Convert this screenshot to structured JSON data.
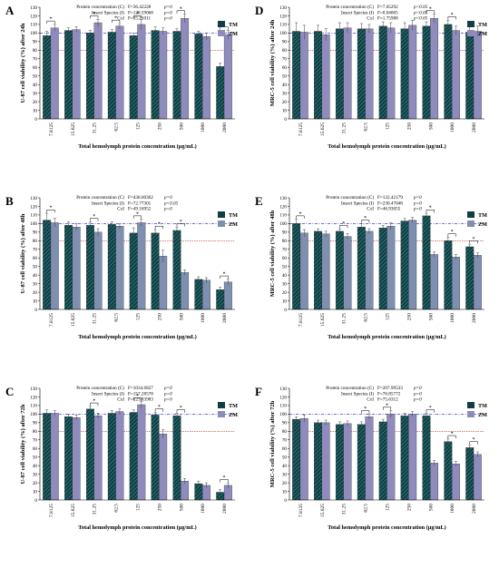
{
  "figure": {
    "legend_labels": [
      "TM",
      "ZM"
    ],
    "xlabel": "Total hemolymph protein concentration (μg/mL)",
    "categories": [
      "7.8125",
      "15.625",
      "31.25",
      "62.5",
      "125",
      "250",
      "500",
      "1000",
      "2000"
    ],
    "yticks": [
      "0",
      "10",
      "20",
      "30",
      "40",
      "50",
      "60",
      "70",
      "80",
      "90",
      "100",
      "110",
      "120",
      "130"
    ],
    "stats_labels": [
      "Protein concentration (C)",
      "Insect Species (I)",
      "CxI"
    ],
    "colors": {
      "TM": "#123d44",
      "ZM": "#8f8cbd",
      "ZM_alt": "#7f8fb0",
      "blue_ref": "#3a40c0",
      "red_ref": "#c0392b"
    }
  },
  "chart_data": [
    {
      "panel": "A",
      "type": "bar",
      "ylabel": "U-87 cell viability (%) after 24h",
      "ylim": [
        0,
        130
      ],
      "reference_lines": [
        100,
        80
      ],
      "stats": [
        [
          "F=36.42228",
          "p=0"
        ],
        [
          "F=128.59068",
          "p=0"
        ],
        [
          "F=15.21011",
          "p=0"
        ]
      ],
      "series": [
        {
          "name": "TM",
          "values": [
            97,
            103,
            100,
            101,
            97,
            103,
            102,
            99,
            61
          ]
        },
        {
          "name": "ZM",
          "values": [
            106,
            104,
            112,
            108,
            110,
            102,
            117,
            96,
            98
          ]
        }
      ],
      "errors": [
        [
          5,
          3,
          3,
          3,
          3,
          4,
          3,
          3,
          4
        ],
        [
          4,
          3,
          4,
          3,
          6,
          4,
          5,
          4,
          5
        ]
      ],
      "significant": [
        0,
        2,
        3,
        4,
        6,
        8
      ]
    },
    {
      "panel": "B",
      "type": "bar",
      "ylabel": "U-87 cell viability (%) after 48h",
      "ylim": [
        0,
        130
      ],
      "reference_lines": [
        100,
        80
      ],
      "stats": [
        [
          "F=438.60362",
          "p=0"
        ],
        [
          "F=72.77301",
          "p<0.05"
        ],
        [
          "F=49.16952",
          "p=0"
        ]
      ],
      "series": [
        {
          "name": "TM",
          "values": [
            104,
            98,
            98,
            99,
            89,
            89,
            92,
            35,
            23
          ]
        },
        {
          "name": "ZM",
          "values": [
            101,
            96,
            90,
            97,
            101,
            62,
            43,
            34,
            32
          ]
        }
      ],
      "errors": [
        [
          8,
          4,
          4,
          3,
          6,
          4,
          4,
          3,
          3
        ],
        [
          5,
          4,
          4,
          3,
          4,
          7,
          3,
          3,
          3
        ]
      ],
      "significant": [
        0,
        2,
        4,
        5,
        6,
        8
      ]
    },
    {
      "panel": "C",
      "type": "bar",
      "ylabel": "U-87 cell viability (%) after 72h",
      "ylim": [
        0,
        130
      ],
      "reference_lines": [
        100,
        80
      ],
      "stats": [
        [
          "F=1034.6827",
          "p=0"
        ],
        [
          "F=157.28578",
          "p=0"
        ],
        [
          "F=123.83983",
          "p=0"
        ]
      ],
      "series": [
        {
          "name": "TM",
          "values": [
            101,
            97,
            106,
            101,
            102,
            99,
            98,
            19,
            9
          ]
        },
        {
          "name": "ZM",
          "values": [
            101,
            96,
            98,
            103,
            111,
            77,
            22,
            17,
            17
          ]
        }
      ],
      "errors": [
        [
          4,
          3,
          3,
          3,
          3,
          3,
          3,
          3,
          3
        ],
        [
          3,
          3,
          3,
          3,
          4,
          5,
          3,
          3,
          3
        ]
      ],
      "significant": [
        2,
        4,
        5,
        6,
        8
      ]
    },
    {
      "panel": "D",
      "type": "bar",
      "ylabel": "MRC-5 cell viability (%) after 24h",
      "ylim": [
        0,
        130
      ],
      "reference_lines": [
        100,
        80
      ],
      "stats": [
        [
          "F=7.65292",
          "p<0.05"
        ],
        [
          "F=0.04005",
          "p<0.05"
        ],
        [
          "F=1.75988",
          "p<0.05"
        ]
      ],
      "series": [
        {
          "name": "TM",
          "values": [
            102,
            102,
            105,
            105,
            108,
            105,
            108,
            110,
            101
          ]
        },
        {
          "name": "ZM",
          "values": [
            101,
            98,
            106,
            105,
            106,
            109,
            117,
            103,
            102
          ]
        }
      ],
      "errors": [
        [
          10,
          7,
          7,
          6,
          5,
          7,
          5,
          5,
          6
        ],
        [
          8,
          7,
          6,
          5,
          6,
          6,
          5,
          5,
          6
        ]
      ],
      "significant": [
        6,
        7
      ]
    },
    {
      "panel": "E",
      "type": "bar",
      "ylabel": "MRC-5 cell viability (%) after 48h",
      "ylim": [
        0,
        130
      ],
      "reference_lines": [
        100,
        80
      ],
      "stats": [
        [
          "F=132.42179",
          "p=0"
        ],
        [
          "F=230.47048",
          "p=0"
        ],
        [
          "F=46.93055",
          "p=0"
        ]
      ],
      "series": [
        {
          "name": "TM",
          "values": [
            100,
            91,
            91,
            96,
            95,
            103,
            109,
            80,
            73
          ]
        },
        {
          "name": "ZM",
          "values": [
            89,
            88,
            85,
            91,
            97,
            104,
            64,
            61,
            63
          ]
        }
      ],
      "errors": [
        [
          5,
          3,
          3,
          4,
          3,
          3,
          3,
          4,
          3
        ],
        [
          4,
          3,
          3,
          3,
          4,
          3,
          3,
          3,
          3
        ]
      ],
      "significant": [
        0,
        2,
        3,
        6,
        7,
        8
      ]
    },
    {
      "panel": "F",
      "type": "bar",
      "ylabel": "MRC-5 cell viability (%) after 72h",
      "ylim": [
        0,
        130
      ],
      "reference_lines": [
        100,
        80
      ],
      "stats": [
        [
          "F=207.99533",
          "p=0"
        ],
        [
          "F=76.85772",
          "p=0"
        ],
        [
          "F=75.6312",
          "p=0"
        ]
      ],
      "series": [
        {
          "name": "TM",
          "values": [
            94,
            90,
            88,
            88,
            91,
            98,
            98,
            68,
            61
          ]
        },
        {
          "name": "ZM",
          "values": [
            95,
            90,
            89,
            97,
            100,
            100,
            43,
            42,
            53
          ]
        }
      ],
      "errors": [
        [
          3,
          3,
          3,
          3,
          3,
          3,
          3,
          3,
          3
        ],
        [
          4,
          3,
          3,
          3,
          4,
          3,
          3,
          3,
          3
        ]
      ],
      "significant": [
        3,
        4,
        6,
        7,
        8
      ]
    }
  ]
}
